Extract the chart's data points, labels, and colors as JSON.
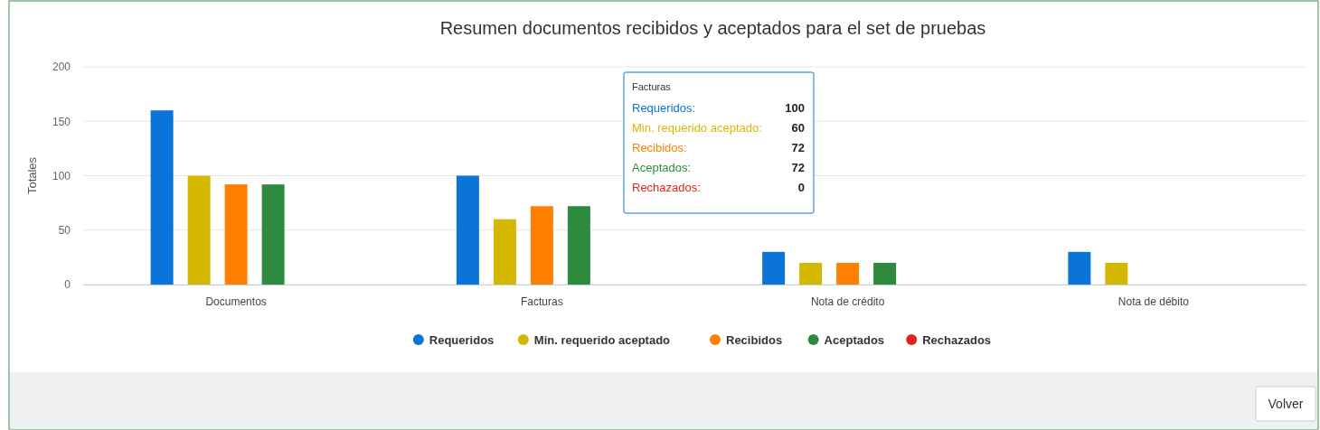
{
  "chart_data": {
    "type": "bar",
    "title": "Resumen documentos recibidos y aceptados para el set de pruebas",
    "ylabel": "Totales",
    "categories": [
      "Documentos",
      "Facturas",
      "Nota de crédito",
      "Nota de débito"
    ],
    "series": [
      {
        "name": "Requeridos",
        "color": "#0a74d8",
        "values": [
          160,
          100,
          30,
          30
        ]
      },
      {
        "name": "Min. requerido aceptado",
        "color": "#d4b800",
        "values": [
          100,
          60,
          20,
          20
        ]
      },
      {
        "name": "Recibidos",
        "color": "#ff8000",
        "values": [
          92,
          72,
          20,
          0
        ]
      },
      {
        "name": "Aceptados",
        "color": "#2e8b3e",
        "values": [
          92,
          72,
          20,
          0
        ]
      },
      {
        "name": "Rechazados",
        "color": "#e0241b",
        "values": [
          0,
          0,
          0,
          0
        ]
      }
    ],
    "ylim": [
      0,
      200
    ],
    "yticks": [
      0,
      50,
      100,
      150,
      200
    ],
    "grid": "y",
    "legend": "bottom",
    "annotations": [
      "Facturas",
      "Requeridos:",
      "100",
      "Min. requerido aceptado:",
      "60",
      "Recibidos:",
      "72",
      "Aceptados:",
      "72",
      "Rechazados:",
      "0",
      "Volver"
    ]
  }
}
